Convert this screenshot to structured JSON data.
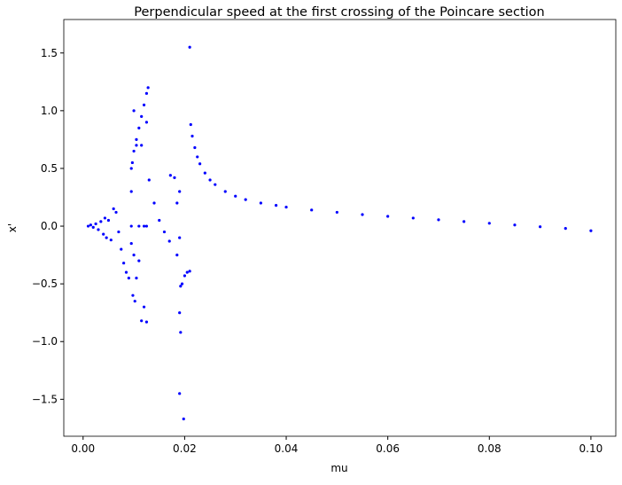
{
  "chart_data": {
    "type": "scatter",
    "title": "Perpendicular speed at the first crossing of the Poincare section",
    "x_label": "mu",
    "y_label": "x'",
    "color": "#0000ff",
    "xlim": [
      -0.0038,
      0.1049
    ],
    "ylim": [
      -1.82,
      1.79
    ],
    "xticks": [
      {
        "value": 0.0,
        "label": "0.00"
      },
      {
        "value": 0.02,
        "label": "0.02"
      },
      {
        "value": 0.04,
        "label": "0.04"
      },
      {
        "value": 0.06,
        "label": "0.06"
      },
      {
        "value": 0.08,
        "label": "0.08"
      },
      {
        "value": 0.1,
        "label": "0.10"
      }
    ],
    "yticks": [
      {
        "value": -1.5,
        "label": "−1.5"
      },
      {
        "value": -1.0,
        "label": "−1.0"
      },
      {
        "value": -0.5,
        "label": "−0.5"
      },
      {
        "value": 0.0,
        "label": "0.0"
      },
      0.5,
      {
        "value": 1.0,
        "label": "1.0"
      },
      1.5
    ],
    "x": [
      0.0212,
      0.0215,
      0.022,
      0.0225,
      0.023,
      0.024,
      0.025,
      0.026,
      0.028,
      0.03,
      0.032,
      0.035,
      0.038,
      0.04,
      0.045,
      0.05,
      0.055,
      0.06,
      0.065,
      0.07,
      0.075,
      0.08,
      0.085,
      0.09,
      0.095,
      0.1,
      0.001,
      0.0015,
      0.002,
      0.0025,
      0.003,
      0.0035,
      0.004,
      0.0043,
      0.0046,
      0.005,
      0.0055,
      0.006,
      0.0065,
      0.007,
      0.0075,
      0.008,
      0.0085,
      0.009,
      0.0095,
      0.0095,
      0.0097,
      0.01,
      0.0105,
      0.011,
      0.0115,
      0.012,
      0.0125,
      0.0128,
      0.01,
      0.0105,
      0.0115,
      0.0125,
      0.0095,
      0.011,
      0.012,
      0.0125,
      0.0098,
      0.0102,
      0.0105,
      0.011,
      0.0115,
      0.012,
      0.0125,
      0.0095,
      0.01,
      0.013,
      0.014,
      0.015,
      0.016,
      0.017,
      0.0172,
      0.018,
      0.019,
      0.0185,
      0.019,
      0.0192,
      0.0195,
      0.02,
      0.0205,
      0.021,
      0.019,
      0.0192,
      0.019,
      0.0198,
      0.021,
      0.0185
    ],
    "values": [
      0.88,
      0.78,
      0.68,
      0.6,
      0.54,
      0.46,
      0.4,
      0.36,
      0.3,
      0.26,
      0.23,
      0.2,
      0.18,
      0.165,
      0.14,
      0.12,
      0.1,
      0.085,
      0.07,
      0.055,
      0.04,
      0.025,
      0.01,
      -0.005,
      -0.02,
      -0.04,
      0.0,
      0.01,
      -0.01,
      0.02,
      -0.03,
      0.04,
      -0.07,
      0.07,
      -0.1,
      0.05,
      -0.12,
      0.15,
      0.12,
      -0.05,
      -0.2,
      -0.32,
      -0.4,
      -0.45,
      0.3,
      0.5,
      0.55,
      0.65,
      0.75,
      0.85,
      0.95,
      1.05,
      1.15,
      1.2,
      1.0,
      0.7,
      0.7,
      0.9,
      0.0,
      0.0,
      0.0,
      0.0,
      -0.6,
      -0.65,
      -0.45,
      -0.3,
      -0.82,
      -0.7,
      -0.83,
      -0.15,
      -0.25,
      0.4,
      0.2,
      0.05,
      -0.05,
      -0.13,
      0.44,
      0.42,
      0.3,
      0.2,
      -0.1,
      -0.52,
      -0.5,
      -0.43,
      -0.4,
      -0.39,
      -0.75,
      -0.92,
      -1.45,
      -1.67,
      1.55,
      -0.25
    ]
  }
}
